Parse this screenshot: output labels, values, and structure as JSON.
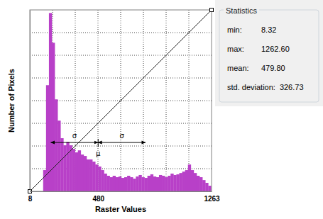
{
  "chart_data": {
    "type": "histogram",
    "xlabel": "Raster Values",
    "ylabel": "Number of Pixels",
    "bins": [
      100,
      120,
      140,
      160,
      180,
      200,
      220,
      240,
      260,
      280,
      300,
      320,
      340,
      360,
      380,
      400,
      420,
      440,
      460,
      480,
      500,
      520,
      540,
      560,
      580,
      600,
      620,
      640,
      660,
      680,
      700,
      720,
      740,
      760,
      780,
      800,
      820,
      840,
      860,
      880,
      900,
      920,
      940,
      960,
      980,
      1000,
      1020,
      1040,
      1060,
      1080,
      1100,
      1120,
      1140,
      1160,
      1180,
      1200,
      1220,
      1240,
      1260
    ],
    "counts": [
      117,
      585,
      983,
      819,
      507,
      390,
      293,
      254,
      273,
      254,
      234,
      215,
      226,
      203,
      195,
      176,
      176,
      164,
      148,
      137,
      117,
      98,
      86,
      78,
      86,
      78,
      82,
      74,
      78,
      86,
      78,
      70,
      82,
      90,
      78,
      74,
      86,
      94,
      82,
      78,
      90,
      86,
      78,
      86,
      98,
      90,
      94,
      101,
      109,
      117,
      148,
      117,
      101,
      86,
      78,
      62,
      47,
      31
    ],
    "color": "#b840c8",
    "xlim": [
      8,
      1263
    ],
    "xticks": [
      8,
      480,
      1263
    ],
    "ylim": [
      0,
      1000
    ],
    "grid": true,
    "tick_labels": "x",
    "annotations": [
      {
        "text": "σ"
      },
      {
        "text": "σ"
      },
      {
        "text": "μ"
      }
    ]
  },
  "statistics": {
    "title": "Statistics",
    "items": [
      {
        "label": "min:",
        "value": 8.32,
        "text": "8.32"
      },
      {
        "label": "max:",
        "value": 1262.6,
        "text": "1262.60"
      },
      {
        "label": "mean:",
        "value": 479.8,
        "text": "479.80"
      },
      {
        "label": "std. deviation:",
        "value": 326.73,
        "text": "326.73"
      }
    ]
  }
}
